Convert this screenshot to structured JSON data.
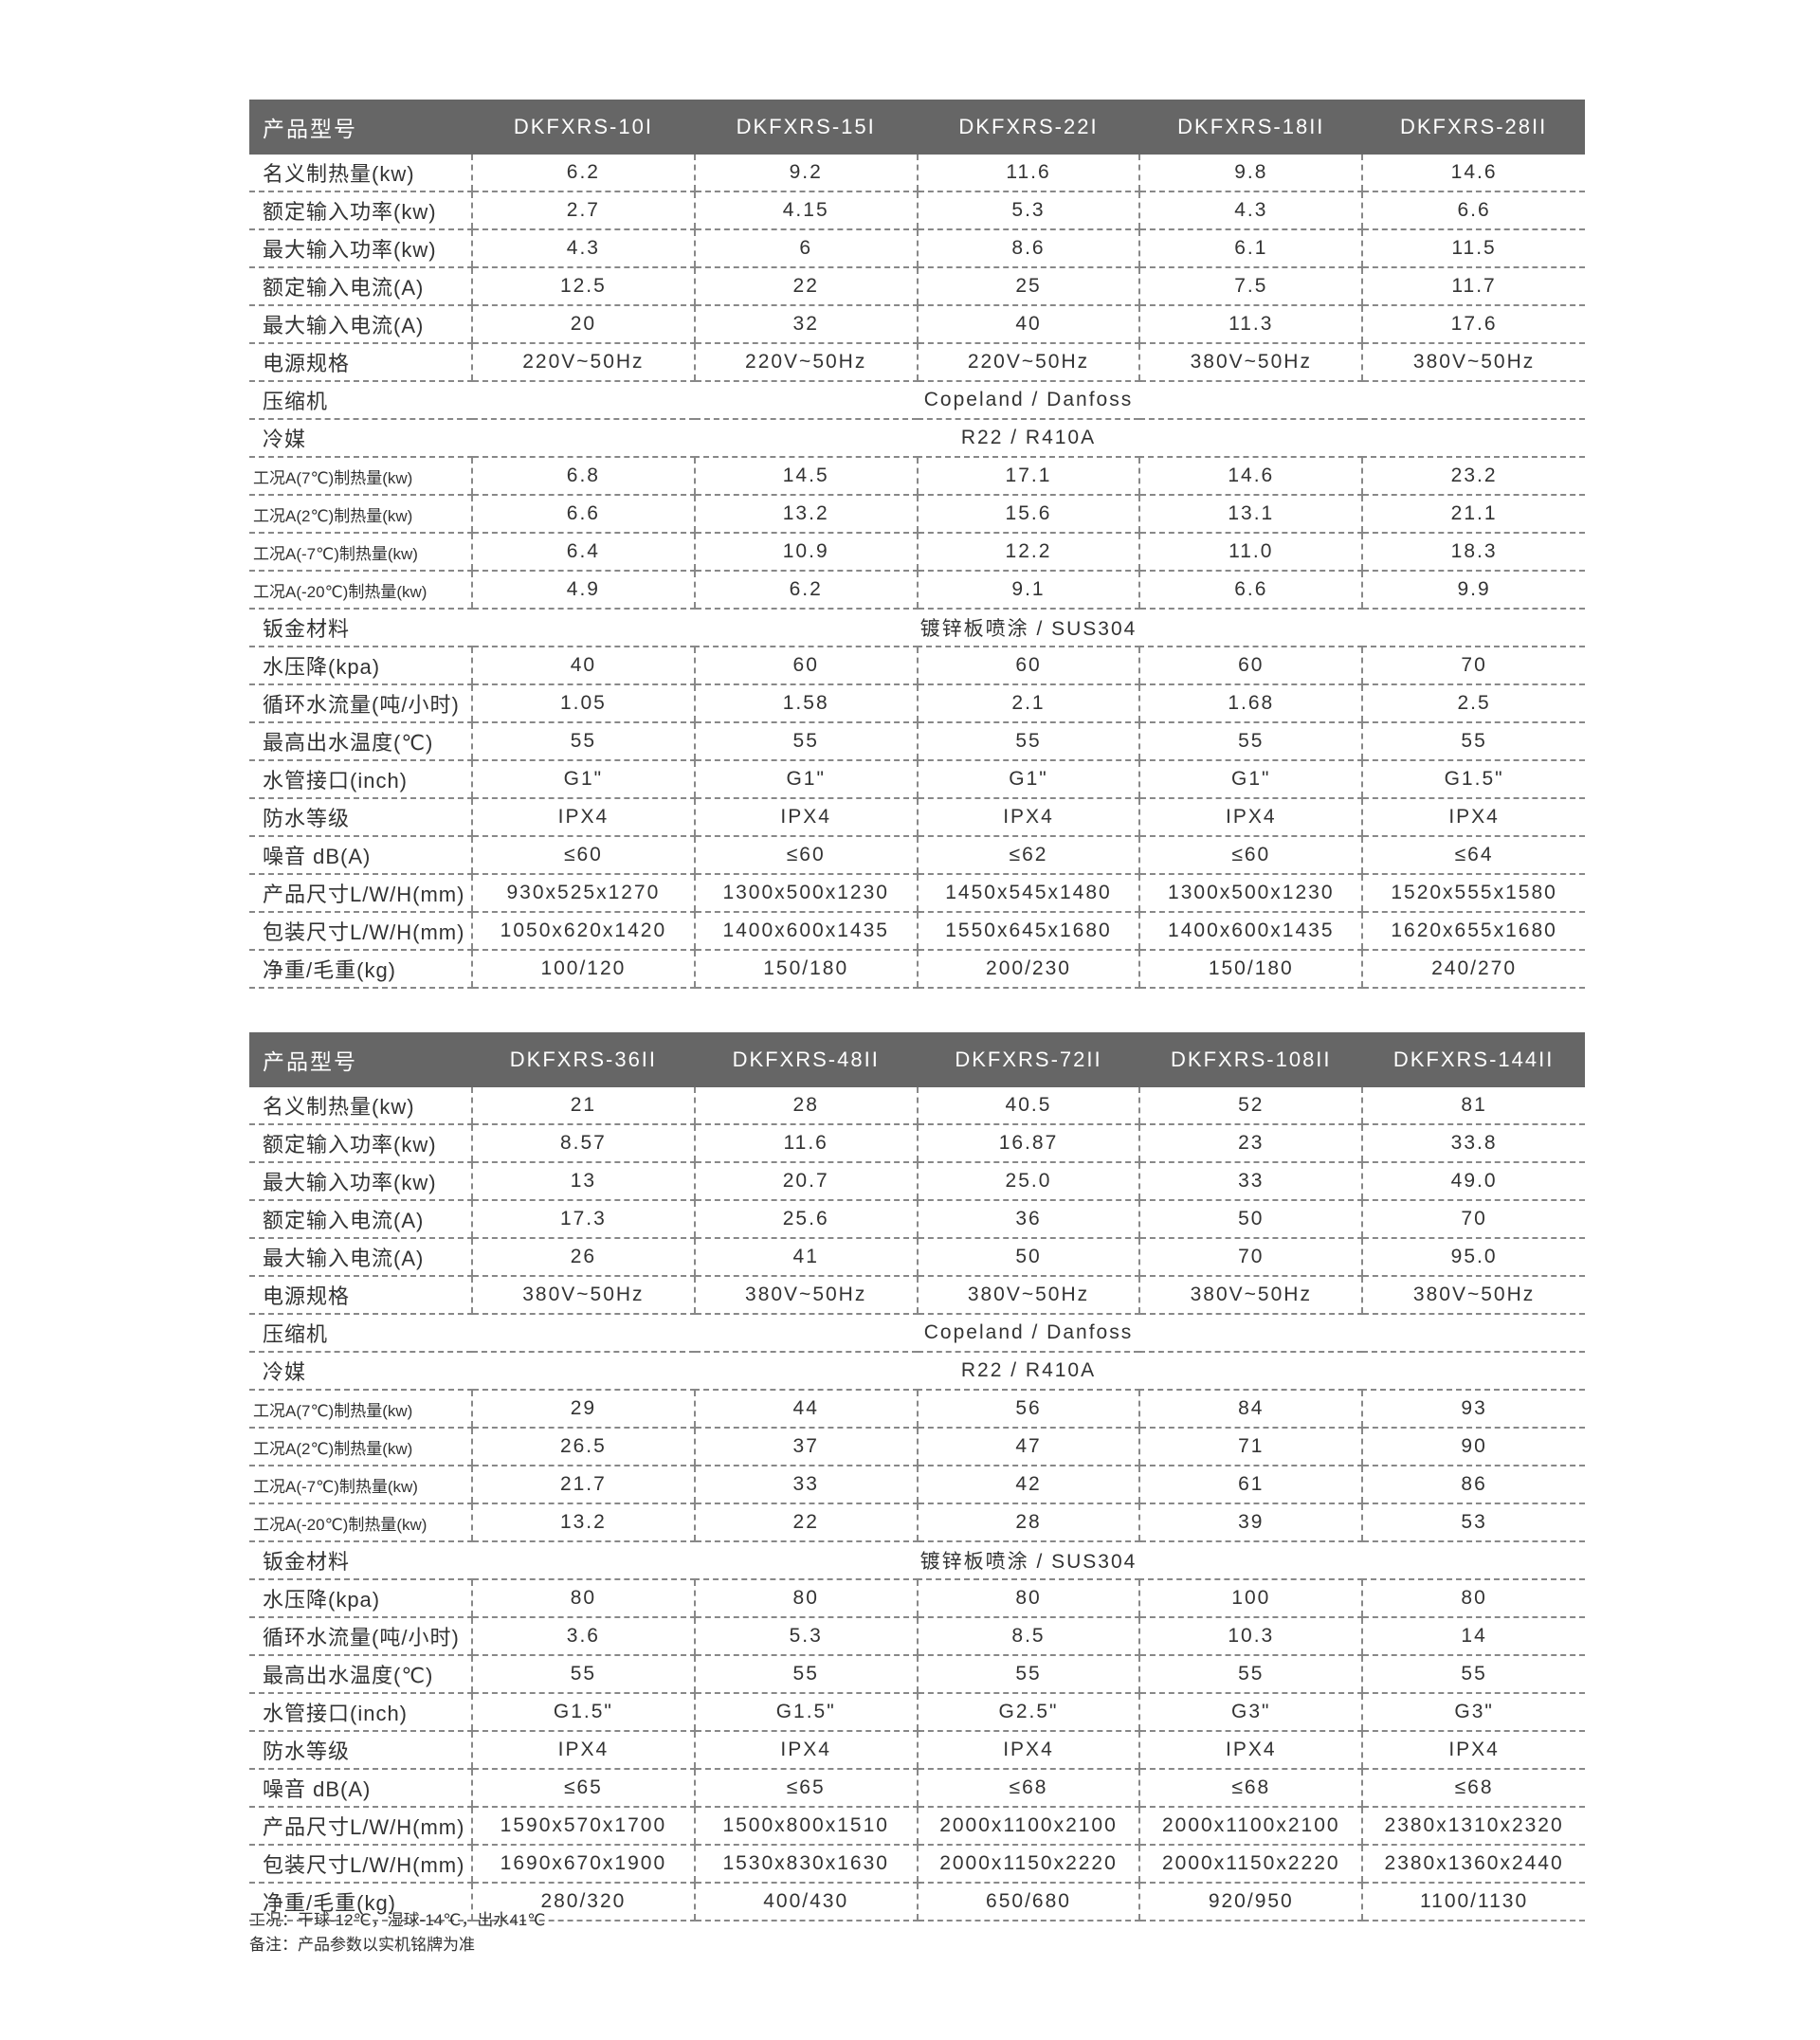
{
  "tables": [
    {
      "header": [
        "产品型号",
        "DKFXRS-10I",
        "DKFXRS-15I",
        "DKFXRS-22I",
        "DKFXRS-18II",
        "DKFXRS-28II"
      ],
      "rows": [
        {
          "label": "名义制热量(kw)",
          "values": [
            "6.2",
            "9.2",
            "11.6",
            "9.8",
            "14.6"
          ]
        },
        {
          "label": "额定输入功率(kw)",
          "values": [
            "2.7",
            "4.15",
            "5.3",
            "4.3",
            "6.6"
          ]
        },
        {
          "label": "最大输入功率(kw)",
          "values": [
            "4.3",
            "6",
            "8.6",
            "6.1",
            "11.5"
          ]
        },
        {
          "label": "额定输入电流(A)",
          "values": [
            "12.5",
            "22",
            "25",
            "7.5",
            "11.7"
          ]
        },
        {
          "label": "最大输入电流(A)",
          "values": [
            "20",
            "32",
            "40",
            "11.3",
            "17.6"
          ]
        },
        {
          "label": "电源规格",
          "values": [
            "220V~50Hz",
            "220V~50Hz",
            "220V~50Hz",
            "380V~50Hz",
            "380V~50Hz"
          ]
        },
        {
          "label": "压缩机",
          "span": "Copeland / Danfoss"
        },
        {
          "label": "冷媒",
          "span": "R22 / R410A"
        },
        {
          "label": "工况A(7℃)制热量(kw)",
          "small": true,
          "values": [
            "6.8",
            "14.5",
            "17.1",
            "14.6",
            "23.2"
          ]
        },
        {
          "label": "工况A(2℃)制热量(kw)",
          "small": true,
          "values": [
            "6.6",
            "13.2",
            "15.6",
            "13.1",
            "21.1"
          ]
        },
        {
          "label": "工况A(-7℃)制热量(kw)",
          "small": true,
          "values": [
            "6.4",
            "10.9",
            "12.2",
            "11.0",
            "18.3"
          ]
        },
        {
          "label": "工况A(-20℃)制热量(kw)",
          "small": true,
          "values": [
            "4.9",
            "6.2",
            "9.1",
            "6.6",
            "9.9"
          ]
        },
        {
          "label": "钣金材料",
          "span": "镀锌板喷涂 / SUS304"
        },
        {
          "label": "水压降(kpa)",
          "values": [
            "40",
            "60",
            "60",
            "60",
            "70"
          ]
        },
        {
          "label": "循环水流量(吨/小时)",
          "values": [
            "1.05",
            "1.58",
            "2.1",
            "1.68",
            "2.5"
          ]
        },
        {
          "label": "最高出水温度(℃)",
          "values": [
            "55",
            "55",
            "55",
            "55",
            "55"
          ]
        },
        {
          "label": "水管接口(inch)",
          "values": [
            "G1\"",
            "G1\"",
            "G1\"",
            "G1\"",
            "G1.5\""
          ]
        },
        {
          "label": "防水等级",
          "values": [
            "IPX4",
            "IPX4",
            "IPX4",
            "IPX4",
            "IPX4"
          ]
        },
        {
          "label": "噪音 dB(A)",
          "values": [
            "≤60",
            "≤60",
            "≤62",
            "≤60",
            "≤64"
          ]
        },
        {
          "label": "产品尺寸L/W/H(mm)",
          "values": [
            "930x525x1270",
            "1300x500x1230",
            "1450x545x1480",
            "1300x500x1230",
            "1520x555x1580"
          ]
        },
        {
          "label": "包装尺寸L/W/H(mm)",
          "values": [
            "1050x620x1420",
            "1400x600x1435",
            "1550x645x1680",
            "1400x600x1435",
            "1620x655x1680"
          ]
        },
        {
          "label": "净重/毛重(kg)",
          "values": [
            "100/120",
            "150/180",
            "200/230",
            "150/180",
            "240/270"
          ]
        }
      ]
    },
    {
      "header": [
        "产品型号",
        "DKFXRS-36II",
        "DKFXRS-48II",
        "DKFXRS-72II",
        "DKFXRS-108II",
        "DKFXRS-144II"
      ],
      "rows": [
        {
          "label": "名义制热量(kw)",
          "values": [
            "21",
            "28",
            "40.5",
            "52",
            "81"
          ]
        },
        {
          "label": "额定输入功率(kw)",
          "values": [
            "8.57",
            "11.6",
            "16.87",
            "23",
            "33.8"
          ]
        },
        {
          "label": "最大输入功率(kw)",
          "values": [
            "13",
            "20.7",
            "25.0",
            "33",
            "49.0"
          ]
        },
        {
          "label": "额定输入电流(A)",
          "values": [
            "17.3",
            "25.6",
            "36",
            "50",
            "70"
          ]
        },
        {
          "label": "最大输入电流(A)",
          "values": [
            "26",
            "41",
            "50",
            "70",
            "95.0"
          ]
        },
        {
          "label": "电源规格",
          "values": [
            "380V~50Hz",
            "380V~50Hz",
            "380V~50Hz",
            "380V~50Hz",
            "380V~50Hz"
          ]
        },
        {
          "label": "压缩机",
          "span": "Copeland / Danfoss"
        },
        {
          "label": "冷媒",
          "span": "R22 / R410A"
        },
        {
          "label": "工况A(7℃)制热量(kw)",
          "small": true,
          "values": [
            "29",
            "44",
            "56",
            "84",
            "93"
          ]
        },
        {
          "label": "工况A(2℃)制热量(kw)",
          "small": true,
          "values": [
            "26.5",
            "37",
            "47",
            "71",
            "90"
          ]
        },
        {
          "label": "工况A(-7℃)制热量(kw)",
          "small": true,
          "values": [
            "21.7",
            "33",
            "42",
            "61",
            "86"
          ]
        },
        {
          "label": "工况A(-20℃)制热量(kw)",
          "small": true,
          "values": [
            "13.2",
            "22",
            "28",
            "39",
            "53"
          ]
        },
        {
          "label": "钣金材料",
          "span": "镀锌板喷涂 / SUS304"
        },
        {
          "label": "水压降(kpa)",
          "values": [
            "80",
            "80",
            "80",
            "100",
            "80"
          ]
        },
        {
          "label": "循环水流量(吨/小时)",
          "values": [
            "3.6",
            "5.3",
            "8.5",
            "10.3",
            "14"
          ]
        },
        {
          "label": "最高出水温度(℃)",
          "values": [
            "55",
            "55",
            "55",
            "55",
            "55"
          ]
        },
        {
          "label": "水管接口(inch)",
          "values": [
            "G1.5\"",
            "G1.5\"",
            "G2.5\"",
            "G3\"",
            "G3\""
          ]
        },
        {
          "label": "防水等级",
          "values": [
            "IPX4",
            "IPX4",
            "IPX4",
            "IPX4",
            "IPX4"
          ]
        },
        {
          "label": "噪音 dB(A)",
          "values": [
            "≤65",
            "≤65",
            "≤68",
            "≤68",
            "≤68"
          ]
        },
        {
          "label": "产品尺寸L/W/H(mm)",
          "values": [
            "1590x570x1700",
            "1500x800x1510",
            "2000x1100x2100",
            "2000x1100x2100",
            "2380x1310x2320"
          ]
        },
        {
          "label": "包装尺寸L/W/H(mm)",
          "values": [
            "1690x670x1900",
            "1530x830x1630",
            "2000x1150x2220",
            "2000x1150x2220",
            "2380x1360x2440"
          ]
        },
        {
          "label": "净重/毛重(kg)",
          "values": [
            "280/320",
            "400/430",
            "650/680",
            "920/950",
            "1100/1130"
          ]
        }
      ]
    }
  ],
  "notes": {
    "conditions": "工况：干球-12℃，湿球-14℃，出水41℃",
    "remark": "备注：产品参数以实机铭牌为准"
  },
  "colors": {
    "header_bg": "#666666",
    "header_text": "#ffffff",
    "divider": "#888888"
  }
}
